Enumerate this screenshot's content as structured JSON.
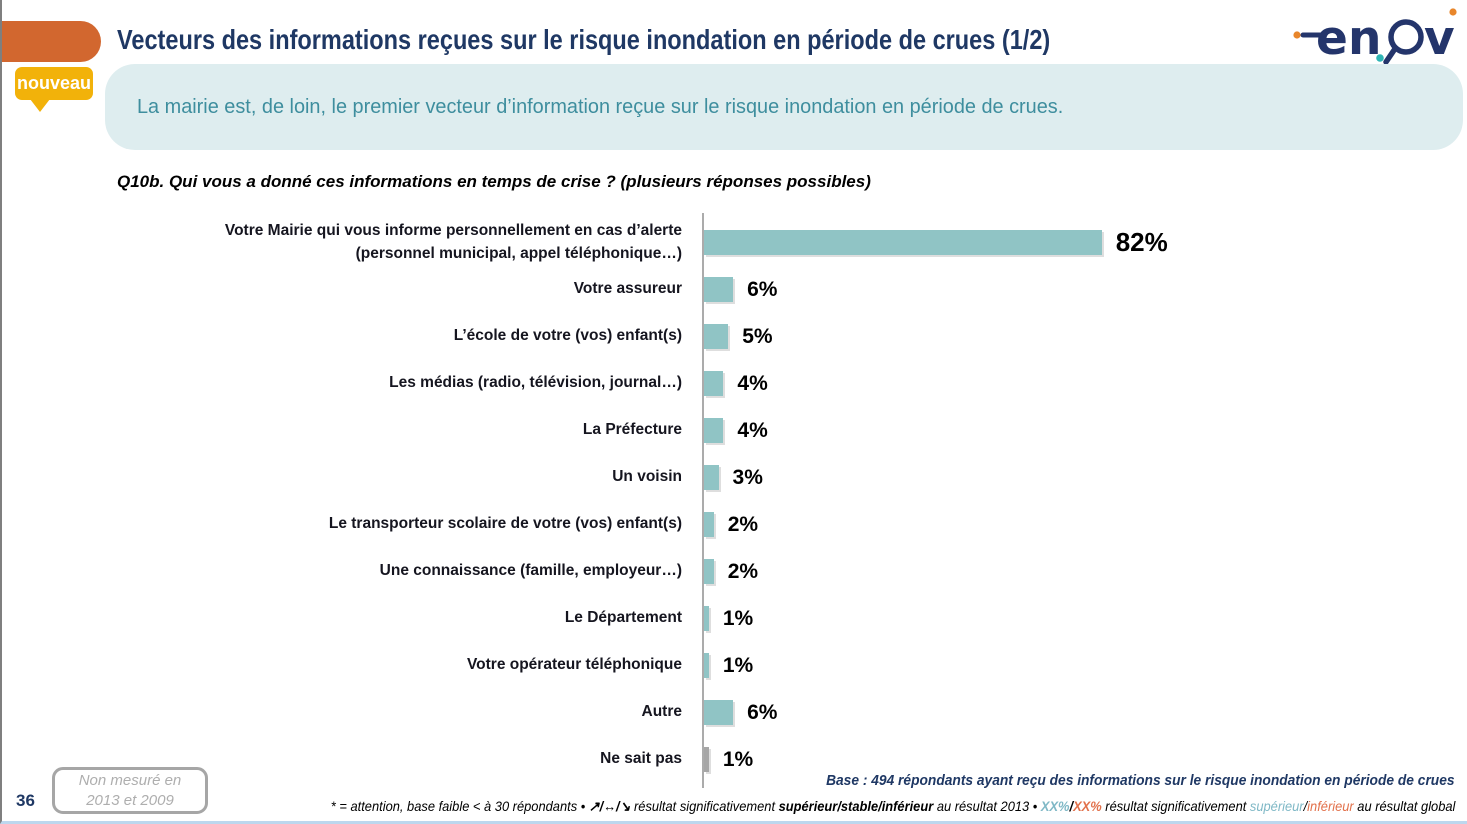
{
  "header": {
    "title": "Vecteurs des informations reçues sur le risque inondation en période de crues (1/2)",
    "badge": "nouveau",
    "banner_message": "La mairie est, de loin, le premier vecteur d’information reçue sur le risque inondation en période de crues.",
    "logo": "enov"
  },
  "chart_data": {
    "type": "bar",
    "orientation": "horizontal",
    "question": "Q10b. Qui vous a donné ces informations en temps de crise ? (plusieurs réponses possibles)",
    "categories": [
      "Votre Mairie qui vous informe personnellement en cas d’alerte (personnel municipal, appel téléphonique…)",
      "Votre assureur",
      "L’école de votre (vos) enfant(s)",
      "Les médias (radio, télévision, journal…)",
      "La Préfecture",
      "Un voisin",
      "Le transporteur scolaire de votre (vos) enfant(s)",
      "Une connaissance (famille, employeur…)",
      "Le Département",
      "Votre opérateur téléphonique",
      "Autre",
      "Ne sait pas"
    ],
    "values": [
      82,
      6,
      5,
      4,
      4,
      3,
      2,
      2,
      1,
      1,
      6,
      1
    ],
    "unit": "%",
    "xlim": [
      0,
      100
    ],
    "grid": false,
    "legend_position": "none",
    "bar_color": "#90c4c5",
    "gray_bar_color": "#a6a6a6",
    "gray_category": "Ne sait pas"
  },
  "footer": {
    "page_number": "36",
    "not_measured": {
      "line1": "Non mesuré en",
      "line2": "2013 et 2009"
    },
    "base_note": "Base : 494 répondants ayant reçu des informations sur le risque inondation en période de crues",
    "significance_note_segments": [
      {
        "text": "* = attention, base faible < à 30 répondants • ",
        "style": "plain"
      },
      {
        "text": "↗/↔/↘",
        "style": "bold"
      },
      {
        "text": " résultat significativement ",
        "style": "plain"
      },
      {
        "text": "supérieur/stable/inférieur",
        "style": "bold"
      },
      {
        "text": " au résultat 2013 • ",
        "style": "plain"
      },
      {
        "text": "XX%",
        "style": "teal-bold"
      },
      {
        "text": "/",
        "style": "plain-bold"
      },
      {
        "text": "XX%",
        "style": "orange-bold"
      },
      {
        "text": " résultat significativement ",
        "style": "plain"
      },
      {
        "text": "supérieur",
        "style": "teal"
      },
      {
        "text": "/",
        "style": "plain"
      },
      {
        "text": "inférieur",
        "style": "orange"
      },
      {
        "text": " au résultat global",
        "style": "plain"
      }
    ]
  },
  "colors": {
    "accent_orange": "#d2672f",
    "badge_yellow": "#f2b20a",
    "banner_bg": "#deedef",
    "banner_text": "#3e8e9e",
    "title_navy": "#1f3864",
    "bar_teal": "#90c4c5",
    "bar_gray": "#a6a6a6",
    "footnote_teal": "#7fb8c6",
    "footnote_orange": "#e2714b",
    "logo_navy": "#24356b",
    "logo_orange": "#e8862b",
    "logo_teal": "#2fb5b5"
  }
}
